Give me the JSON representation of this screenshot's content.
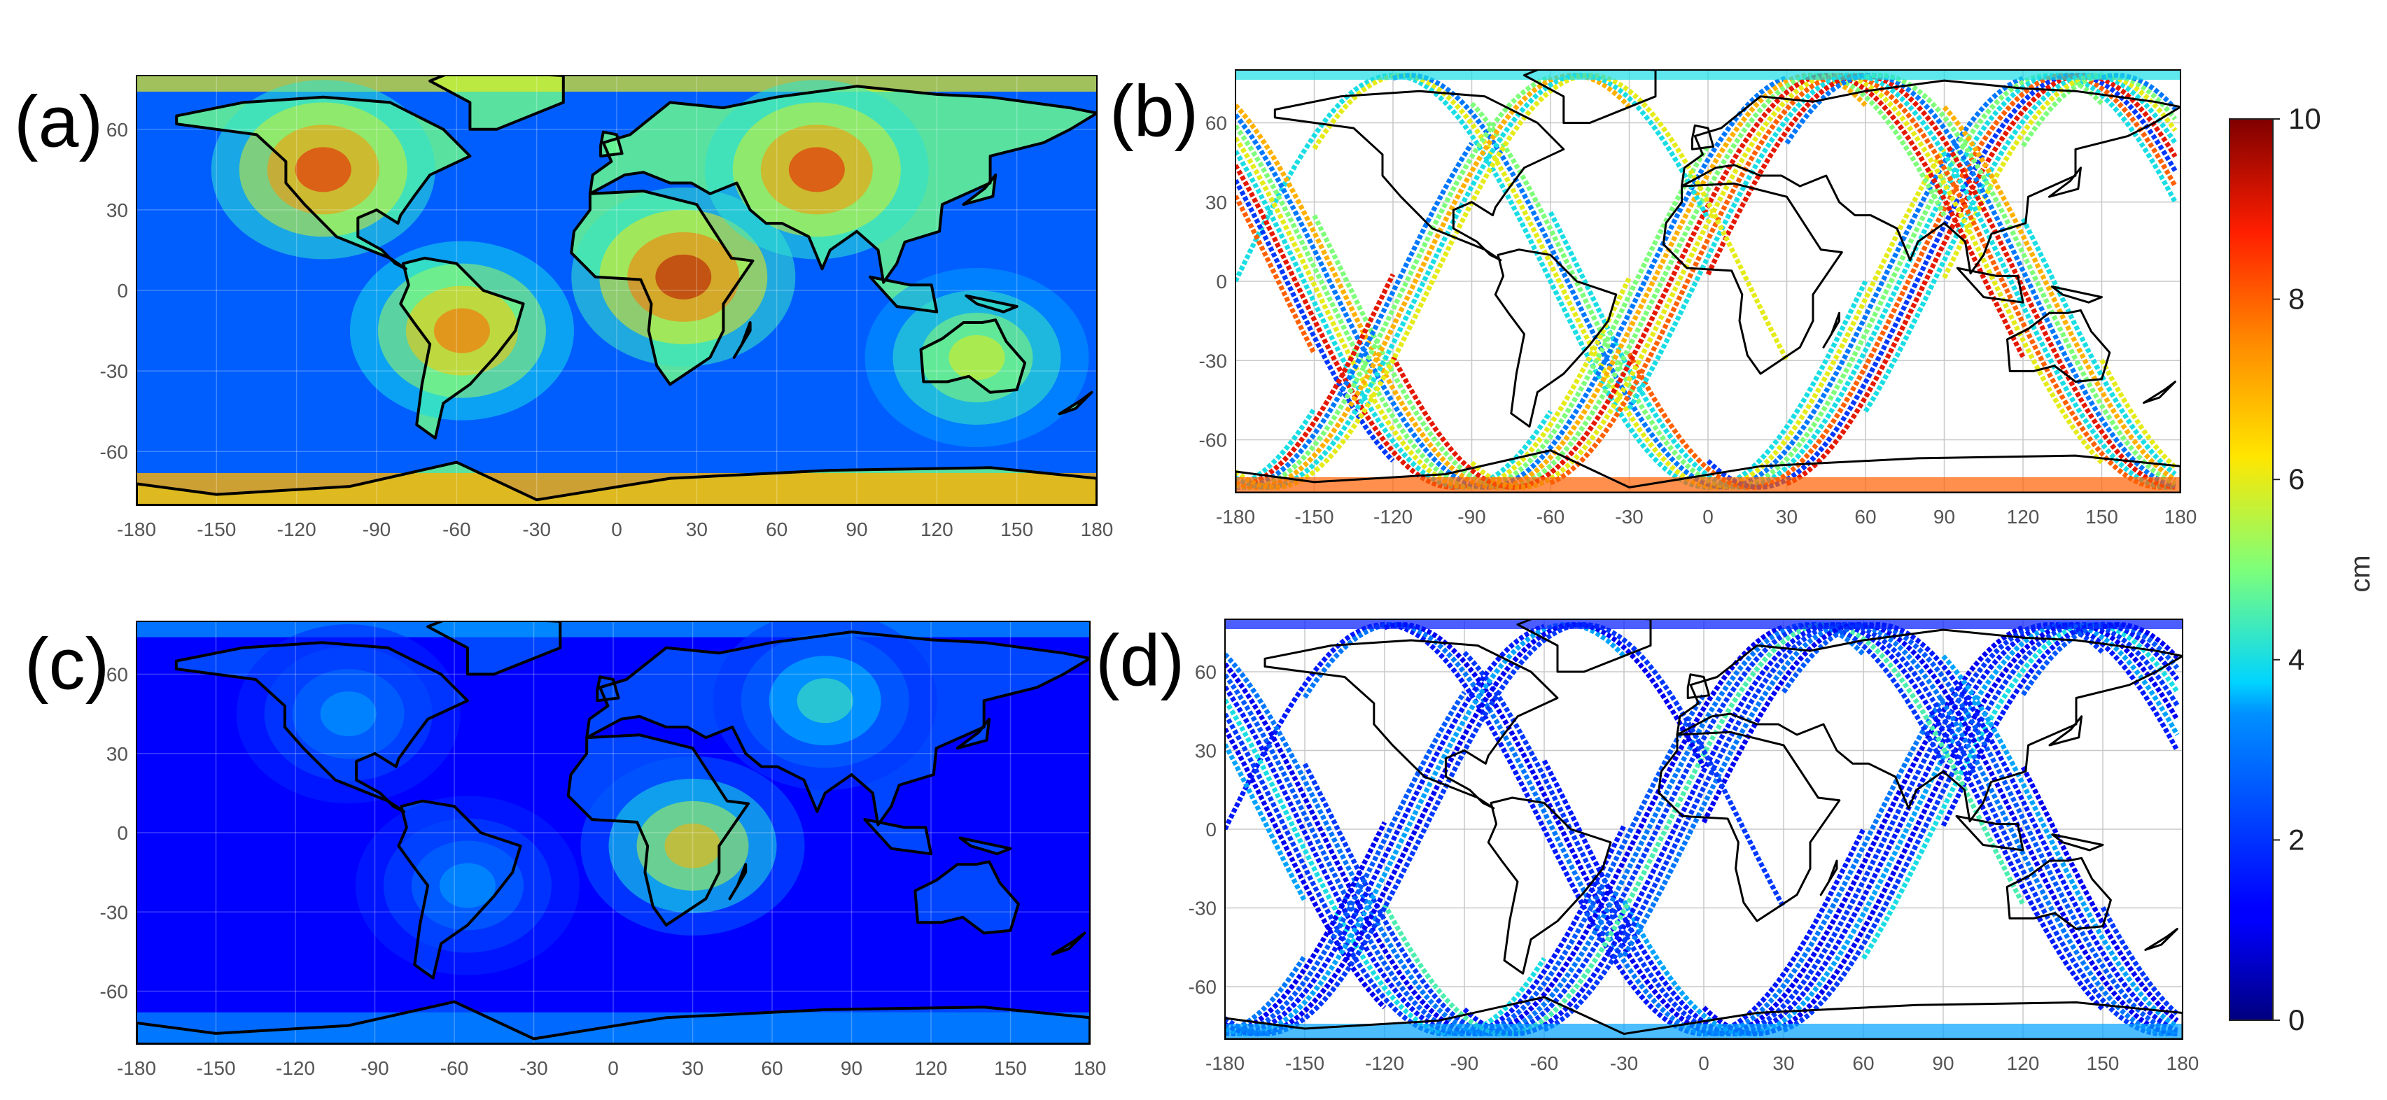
{
  "figure": {
    "colorbar": {
      "min": 0,
      "max": 10,
      "ticks": [
        "0",
        "2",
        "4",
        "6",
        "8",
        "10"
      ],
      "unit": "cm",
      "colormap": "jet"
    }
  },
  "chart_data": [
    {
      "type": "heatmap",
      "panel_label": "(a)",
      "map": "global gridded field",
      "x_ticks": [
        "-180",
        "-150",
        "-120",
        "-90",
        "-60",
        "-30",
        "0",
        "30",
        "60",
        "90",
        "120",
        "150",
        "180"
      ],
      "y_ticks": [
        "60",
        "30",
        "0",
        "-30",
        "-60"
      ],
      "xlim": [
        -180,
        180
      ],
      "ylim": [
        -80,
        80
      ],
      "grid": true,
      "hotspots": [
        {
          "lon": -110,
          "lat": 45,
          "value": 9
        },
        {
          "lon": 25,
          "lat": 5,
          "value": 9.5
        },
        {
          "lon": 75,
          "lat": 45,
          "value": 9
        },
        {
          "lon": -58,
          "lat": -15,
          "value": 8
        },
        {
          "lon": 135,
          "lat": -25,
          "value": 6
        }
      ]
    },
    {
      "type": "scatter",
      "panel_label": "(b)",
      "map": "ground tracks",
      "x_ticks": [
        "-180",
        "-150",
        "-120",
        "-90",
        "-60",
        "-30",
        "0",
        "30",
        "60",
        "90",
        "120",
        "150",
        "180"
      ],
      "y_ticks": [
        "60",
        "30",
        "0",
        "-30",
        "-60"
      ],
      "xlim": [
        -180,
        180
      ],
      "ylim": [
        -80,
        80
      ],
      "grid": true,
      "track_values": [
        4,
        6,
        3,
        5,
        4,
        8,
        2,
        9,
        4,
        6,
        5,
        3,
        7,
        5,
        9,
        6,
        8,
        4,
        9,
        3,
        5,
        7,
        4,
        6
      ]
    },
    {
      "type": "heatmap",
      "panel_label": "(c)",
      "map": "global gridded field",
      "x_ticks": [
        "-180",
        "-150",
        "-120",
        "-90",
        "-60",
        "-30",
        "0",
        "30",
        "60",
        "90",
        "120",
        "150",
        "180"
      ],
      "y_ticks": [
        "60",
        "30",
        "0",
        "-30",
        "-60"
      ],
      "xlim": [
        -180,
        180
      ],
      "ylim": [
        -80,
        80
      ],
      "grid": true,
      "hotspots": [
        {
          "lon": 30,
          "lat": -5,
          "value": 7
        },
        {
          "lon": 80,
          "lat": 50,
          "value": 4.5
        },
        {
          "lon": -100,
          "lat": 45,
          "value": 3.5
        },
        {
          "lon": -55,
          "lat": -20,
          "value": 3.5
        }
      ]
    },
    {
      "type": "scatter",
      "panel_label": "(d)",
      "map": "ground tracks",
      "x_ticks": [
        "-180",
        "-150",
        "-120",
        "-90",
        "-60",
        "-30",
        "0",
        "30",
        "60",
        "90",
        "120",
        "150",
        "180"
      ],
      "y_ticks": [
        "60",
        "30",
        "0",
        "-30",
        "-60"
      ],
      "xlim": [
        -180,
        180
      ],
      "ylim": [
        -80,
        80
      ],
      "grid": true,
      "track_values": [
        1.5,
        3,
        1,
        2,
        1.5,
        3.5,
        1,
        2,
        4,
        1.5,
        2.5,
        1,
        3,
        2,
        4.5,
        1.5,
        2,
        3,
        1,
        2.5,
        1.5,
        3.5,
        1,
        2
      ]
    }
  ]
}
